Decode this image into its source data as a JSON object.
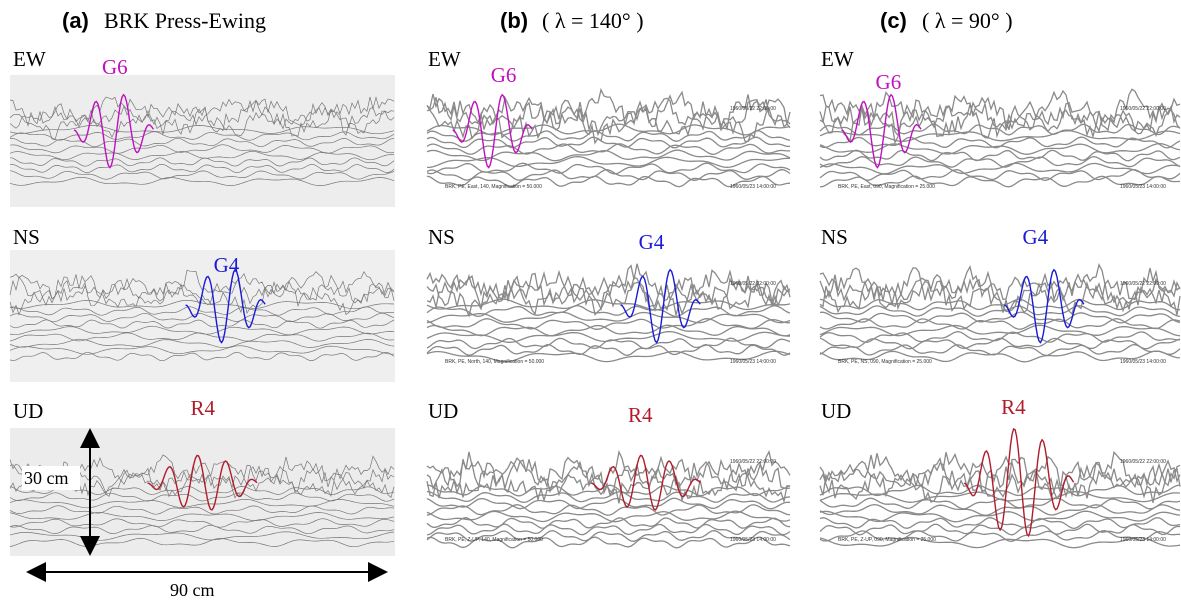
{
  "panels": [
    {
      "label": "(a)",
      "title": "BRK Press-Ewing",
      "rows": [
        {
          "component": "EW",
          "phase": "G6"
        },
        {
          "component": "NS",
          "phase": "G4"
        },
        {
          "component": "UD",
          "phase": "R4"
        }
      ]
    },
    {
      "label": "(b)",
      "title": "( λ = 140° )",
      "rows": [
        {
          "component": "EW",
          "phase": "G6",
          "annotations": [
            "BRK, PE, East, 140, Magnification = 50.000",
            "1960/05/22 22:00:00",
            "1960/05/23 14:00:00"
          ]
        },
        {
          "component": "NS",
          "phase": "G4",
          "annotations": [
            "BRK, PE, North, 140, Magnification = 50.000",
            "1960/05/22 22:00:00",
            "1960/05/23 14:00:00"
          ]
        },
        {
          "component": "UD",
          "phase": "R4",
          "annotations": [
            "BRK, PE, Z-UP, 140, Magnification = 50.000",
            "1960/05/22 22:00:00",
            "1960/05/23 14:00:00"
          ]
        }
      ]
    },
    {
      "label": "(c)",
      "title": "( λ = 90° )",
      "rows": [
        {
          "component": "EW",
          "phase": "G6",
          "annotations": [
            "BRK, PE, East, 090, Magnification = 25.000",
            "1960/05/22 22:00:00",
            "1960/05/23 14:00:00"
          ]
        },
        {
          "component": "NS",
          "phase": "G4",
          "annotations": [
            "BRK, PE, NS, 090, Magnification = 25.000",
            "1960/05/22 22:00:00",
            "1960/05/23 14:00:00"
          ]
        },
        {
          "component": "UD",
          "phase": "R4",
          "annotations": [
            "BRK, PE, Z-UP, 090, Magnification = 25.000",
            "1960/05/22 22:00:00",
            "1960/05/23 14:00:00"
          ]
        }
      ]
    }
  ],
  "scale": {
    "height": "30 cm",
    "width": "90 cm"
  }
}
